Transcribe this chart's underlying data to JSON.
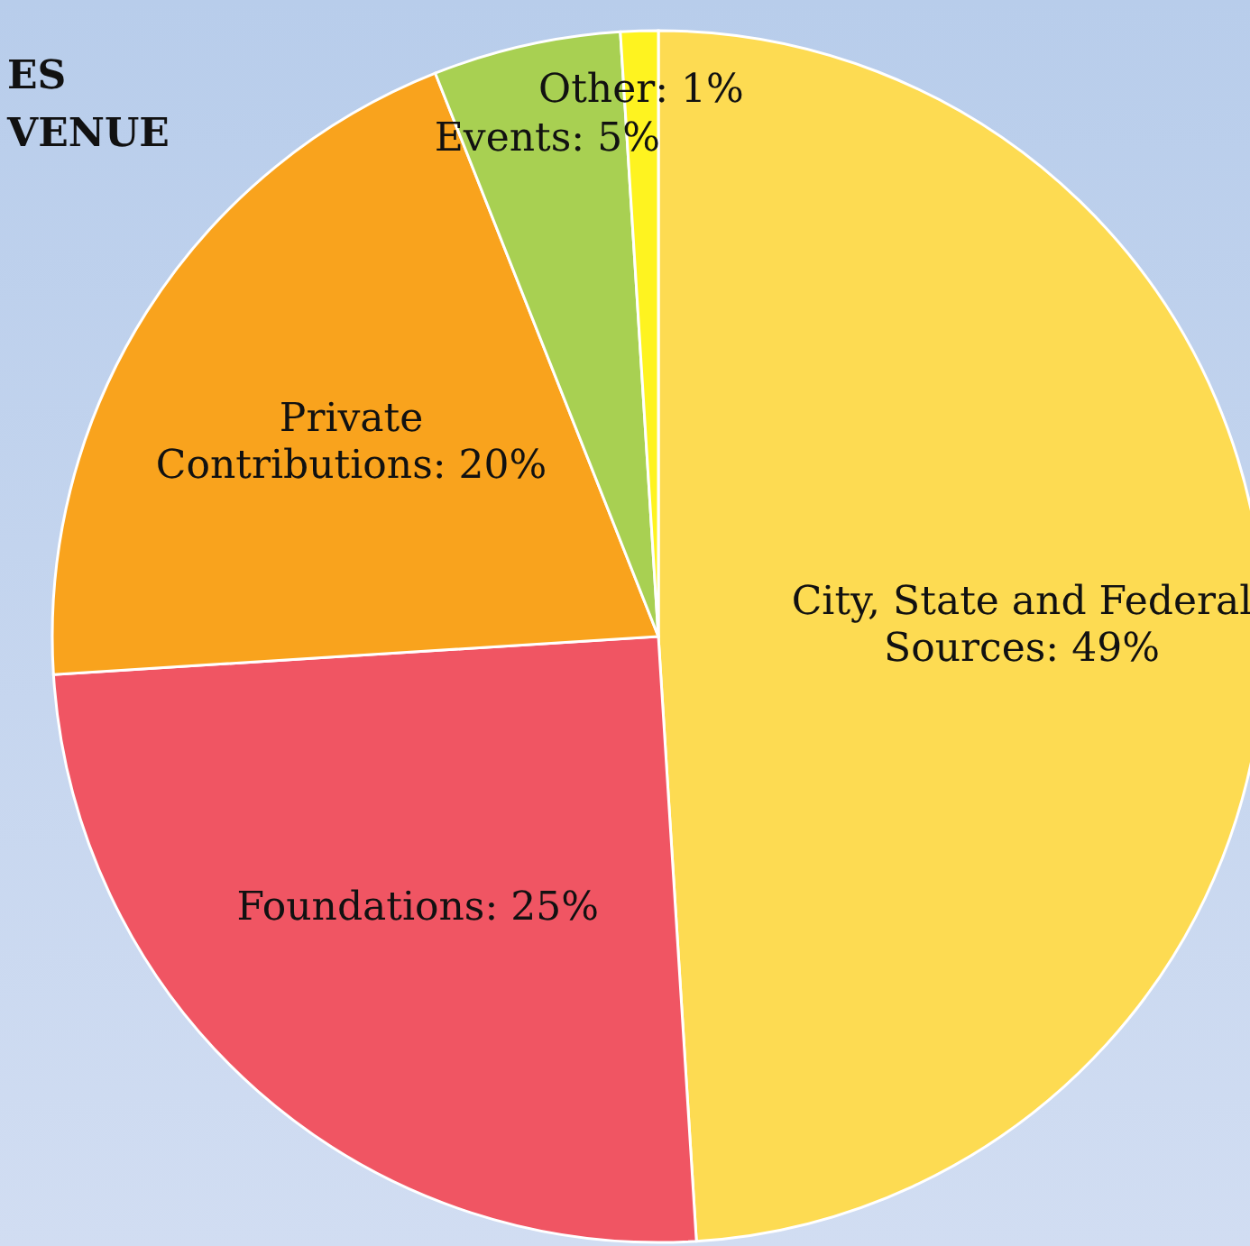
{
  "chart_data": {
    "type": "pie",
    "title": "ES\nVENUE",
    "categories": [
      "City, State and Federal Sources",
      "Foundations",
      "Private Contributions",
      "Events",
      "Other"
    ],
    "values": [
      49,
      25,
      20,
      5,
      1
    ],
    "value_labels": [
      "49%",
      "25%",
      "20%",
      "5%",
      "1%"
    ],
    "colors": [
      "#fddb52",
      "#f05563",
      "#f9a31d",
      "#a8d052",
      "#fef320"
    ],
    "legend": false
  }
}
